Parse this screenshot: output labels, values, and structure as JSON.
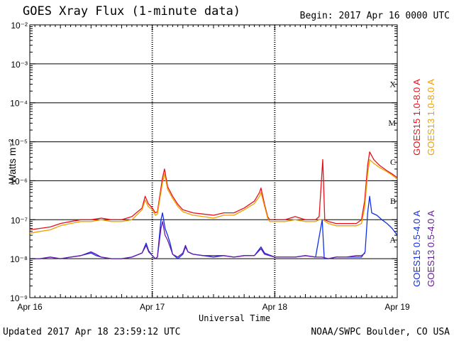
{
  "header": {
    "title": "GOES Xray Flux (1-minute data)",
    "begin": "Begin:  2017 Apr 16 0000 UTC"
  },
  "footer": {
    "updated": "Updated 2017 Apr 18 23:59:12 UTC",
    "credit": "NOAA/SWPC Boulder, CO USA"
  },
  "colors": {
    "goes15_long": "#e8101a",
    "goes13_long": "#f0a000",
    "goes15_short": "#1030e8",
    "goes13_short": "#6a1aa8"
  },
  "chart_data": {
    "type": "line",
    "xlabel": "Universal Time",
    "ylabel": "Watts m⁻²",
    "y_scale": "log",
    "ylim": [
      1e-09,
      0.01
    ],
    "xlim": [
      0,
      72
    ],
    "x_unit": "hours since 2017 Apr 16 0000 UTC",
    "x_ticks": [
      {
        "x": 0,
        "label": "Apr 16"
      },
      {
        "x": 24,
        "label": "Apr 17"
      },
      {
        "x": 48,
        "label": "Apr 18"
      },
      {
        "x": 72,
        "label": "Apr 19"
      }
    ],
    "y_ticks": [
      {
        "exp": -2,
        "label": "10⁻²"
      },
      {
        "exp": -3,
        "label": "10⁻³"
      },
      {
        "exp": -4,
        "label": "10⁻⁴"
      },
      {
        "exp": -5,
        "label": "10⁻⁵"
      },
      {
        "exp": -6,
        "label": "10⁻⁶"
      },
      {
        "exp": -7,
        "label": "10⁻⁷"
      },
      {
        "exp": -8,
        "label": "10⁻⁸"
      },
      {
        "exp": -9,
        "label": "10⁻⁹"
      }
    ],
    "flare_classes": [
      {
        "label": "X",
        "exp": -3.5
      },
      {
        "label": "M",
        "exp": -4.5
      },
      {
        "label": "C",
        "exp": -5.5
      },
      {
        "label": "B",
        "exp": -6.5
      },
      {
        "label": "A",
        "exp": -7.5
      }
    ],
    "grid": true,
    "legend_position": "right",
    "series": [
      {
        "name": "GOES15 1.0-8.0 A",
        "color_key": "goes15_long",
        "points": [
          [
            0,
            5.5e-08
          ],
          [
            2,
            6e-08
          ],
          [
            4,
            6.5e-08
          ],
          [
            6,
            8e-08
          ],
          [
            8,
            9e-08
          ],
          [
            10,
            1e-07
          ],
          [
            12,
            1e-07
          ],
          [
            14,
            1.1e-07
          ],
          [
            16,
            1e-07
          ],
          [
            18,
            1e-07
          ],
          [
            20,
            1.2e-07
          ],
          [
            22,
            2e-07
          ],
          [
            22.6,
            4e-07
          ],
          [
            23.2,
            2.6e-07
          ],
          [
            24,
            2e-07
          ],
          [
            24.6,
            1.5e-07
          ],
          [
            25,
            1.6e-07
          ],
          [
            26,
            1.2e-06
          ],
          [
            26.4,
            2e-06
          ],
          [
            27,
            7e-07
          ],
          [
            28,
            4e-07
          ],
          [
            29,
            2.5e-07
          ],
          [
            30,
            1.8e-07
          ],
          [
            32,
            1.5e-07
          ],
          [
            34,
            1.4e-07
          ],
          [
            36,
            1.3e-07
          ],
          [
            38,
            1.5e-07
          ],
          [
            40,
            1.5e-07
          ],
          [
            42,
            2e-07
          ],
          [
            44,
            3e-07
          ],
          [
            45,
            5e-07
          ],
          [
            45.3,
            6.5e-07
          ],
          [
            46,
            2.5e-07
          ],
          [
            46.6,
            1.2e-07
          ],
          [
            47,
            1e-07
          ],
          [
            48,
            1e-07
          ],
          [
            50,
            1e-07
          ],
          [
            52,
            1.2e-07
          ],
          [
            54,
            1e-07
          ],
          [
            56,
            1e-07
          ],
          [
            56.7,
            1.2e-07
          ],
          [
            57.4,
            3.5e-06
          ],
          [
            57.8,
            1e-07
          ],
          [
            58.5,
            9e-08
          ],
          [
            60,
            8e-08
          ],
          [
            62,
            8e-08
          ],
          [
            64,
            8e-08
          ],
          [
            65,
            1e-07
          ],
          [
            65.6,
            3e-07
          ],
          [
            66.2,
            2.5e-06
          ],
          [
            66.6,
            5.5e-06
          ],
          [
            67.4,
            3.5e-06
          ],
          [
            68.5,
            2.5e-06
          ],
          [
            70,
            1.8e-06
          ],
          [
            71,
            1.5e-06
          ],
          [
            72,
            1.2e-06
          ]
        ]
      },
      {
        "name": "GOES13 1.0-8.0 A",
        "color_key": "goes13_long",
        "points": [
          [
            0,
            4.5e-08
          ],
          [
            2,
            5e-08
          ],
          [
            4,
            5.5e-08
          ],
          [
            6,
            7e-08
          ],
          [
            8,
            8e-08
          ],
          [
            10,
            9e-08
          ],
          [
            12,
            9e-08
          ],
          [
            14,
            1e-07
          ],
          [
            16,
            9e-08
          ],
          [
            18,
            9e-08
          ],
          [
            20,
            1e-07
          ],
          [
            22,
            1.8e-07
          ],
          [
            22.6,
            3.2e-07
          ],
          [
            23.2,
            2.2e-07
          ],
          [
            24,
            1.8e-07
          ],
          [
            24.6,
            1.3e-07
          ],
          [
            25,
            1.4e-07
          ],
          [
            26,
            9e-07
          ],
          [
            26.4,
            1.5e-06
          ],
          [
            27,
            6e-07
          ],
          [
            28,
            3.5e-07
          ],
          [
            29,
            2.2e-07
          ],
          [
            30,
            1.6e-07
          ],
          [
            32,
            1.3e-07
          ],
          [
            34,
            1.2e-07
          ],
          [
            36,
            1.1e-07
          ],
          [
            38,
            1.3e-07
          ],
          [
            40,
            1.3e-07
          ],
          [
            42,
            1.8e-07
          ],
          [
            44,
            2.6e-07
          ],
          [
            45,
            4e-07
          ],
          [
            45.3,
            5e-07
          ],
          [
            46,
            2.2e-07
          ],
          [
            46.6,
            1.1e-07
          ],
          [
            47,
            9e-08
          ],
          [
            48,
            9e-08
          ],
          [
            50,
            9e-08
          ],
          [
            52,
            1e-07
          ],
          [
            54,
            9e-08
          ],
          [
            56,
            9e-08
          ],
          [
            56.7,
            1e-07
          ],
          [
            57.4,
            1e-07
          ],
          [
            58.5,
            8e-08
          ],
          [
            60,
            7e-08
          ],
          [
            62,
            7e-08
          ],
          [
            64,
            7e-08
          ],
          [
            65,
            8e-08
          ],
          [
            65.6,
            2e-07
          ],
          [
            66.2,
            1.5e-06
          ],
          [
            66.6,
            3.5e-06
          ],
          [
            67.4,
            2.8e-06
          ],
          [
            68.5,
            2.2e-06
          ],
          [
            70,
            1.7e-06
          ],
          [
            71,
            1.4e-06
          ],
          [
            72,
            1.1e-06
          ]
        ]
      },
      {
        "name": "GOES15 0.5-4.0 A",
        "color_key": "goes15_short",
        "points": [
          [
            0,
            1e-08
          ],
          [
            2,
            1e-08
          ],
          [
            4,
            1.1e-08
          ],
          [
            6,
            1e-08
          ],
          [
            8,
            1.1e-08
          ],
          [
            10,
            1.2e-08
          ],
          [
            12,
            1.4e-08
          ],
          [
            13,
            1.2e-08
          ],
          [
            14,
            1.1e-08
          ],
          [
            16,
            1e-08
          ],
          [
            18,
            1e-08
          ],
          [
            20,
            1.1e-08
          ],
          [
            22,
            1.4e-08
          ],
          [
            22.8,
            2.5e-08
          ],
          [
            23.3,
            1.6e-08
          ],
          [
            24,
            1.2e-08
          ],
          [
            24.6,
            1e-08
          ],
          [
            25,
            1.1e-08
          ],
          [
            25.7,
            1e-07
          ],
          [
            26,
            1.5e-07
          ],
          [
            26.5,
            6e-08
          ],
          [
            27,
            4e-08
          ],
          [
            27.5,
            2.5e-08
          ],
          [
            28,
            1.3e-08
          ],
          [
            29,
            1e-08
          ],
          [
            30,
            1.3e-08
          ],
          [
            30.5,
            2e-08
          ],
          [
            31,
            1.5e-08
          ],
          [
            32,
            1.3e-08
          ],
          [
            34,
            1.2e-08
          ],
          [
            36,
            1.1e-08
          ],
          [
            38,
            1.2e-08
          ],
          [
            40,
            1.1e-08
          ],
          [
            42,
            1.2e-08
          ],
          [
            44,
            1.2e-08
          ],
          [
            45.3,
            2e-08
          ],
          [
            46,
            1.4e-08
          ],
          [
            48,
            1.1e-08
          ],
          [
            50,
            1.1e-08
          ],
          [
            52,
            1.1e-08
          ],
          [
            54,
            1.2e-08
          ],
          [
            56,
            1.1e-08
          ],
          [
            57.3,
            1e-07
          ],
          [
            57.7,
            1e-08
          ],
          [
            58.5,
            1e-08
          ],
          [
            60,
            1.1e-08
          ],
          [
            62,
            1.1e-08
          ],
          [
            64,
            1.1e-08
          ],
          [
            65,
            1.1e-08
          ],
          [
            65.7,
            1.5e-08
          ],
          [
            66.2,
            1.5e-07
          ],
          [
            66.6,
            4e-07
          ],
          [
            67,
            1.5e-07
          ],
          [
            68,
            1.3e-07
          ],
          [
            69,
            1e-07
          ],
          [
            70,
            8e-08
          ],
          [
            71,
            6e-08
          ],
          [
            72,
            4e-08
          ]
        ]
      },
      {
        "name": "GOES13 0.5-4.0 A",
        "color_key": "goes13_short",
        "points": [
          [
            0,
            1e-08
          ],
          [
            2,
            1e-08
          ],
          [
            4,
            1.1e-08
          ],
          [
            6,
            1e-08
          ],
          [
            8,
            1.1e-08
          ],
          [
            10,
            1.2e-08
          ],
          [
            12,
            1.5e-08
          ],
          [
            13,
            1.3e-08
          ],
          [
            14,
            1.1e-08
          ],
          [
            16,
            1e-08
          ],
          [
            18,
            1e-08
          ],
          [
            20,
            1.1e-08
          ],
          [
            22,
            1.4e-08
          ],
          [
            22.8,
            2.2e-08
          ],
          [
            23.3,
            1.5e-08
          ],
          [
            24,
            1.2e-08
          ],
          [
            24.6,
            1e-08
          ],
          [
            25,
            1.1e-08
          ],
          [
            25.7,
            6e-08
          ],
          [
            26,
            9e-08
          ],
          [
            26.5,
            4e-08
          ],
          [
            27,
            3e-08
          ],
          [
            27.5,
            2e-08
          ],
          [
            28,
            1.3e-08
          ],
          [
            29,
            1.1e-08
          ],
          [
            30,
            1.4e-08
          ],
          [
            30.5,
            2.2e-08
          ],
          [
            31,
            1.5e-08
          ],
          [
            32,
            1.3e-08
          ],
          [
            34,
            1.2e-08
          ],
          [
            36,
            1.2e-08
          ],
          [
            38,
            1.2e-08
          ],
          [
            40,
            1.1e-08
          ],
          [
            42,
            1.2e-08
          ],
          [
            44,
            1.2e-08
          ],
          [
            45.3,
            1.8e-08
          ],
          [
            46,
            1.3e-08
          ],
          [
            48,
            1.1e-08
          ],
          [
            50,
            1.1e-08
          ],
          [
            52,
            1.1e-08
          ],
          [
            54,
            1.2e-08
          ],
          [
            56,
            1.1e-08
          ],
          [
            57.3,
            1.1e-08
          ],
          [
            58.5,
            1e-08
          ],
          [
            60,
            1.1e-08
          ],
          [
            62,
            1.1e-08
          ],
          [
            64,
            1.2e-08
          ],
          [
            65,
            1.2e-08
          ],
          [
            65.7,
            1.4e-08
          ]
        ]
      }
    ]
  }
}
